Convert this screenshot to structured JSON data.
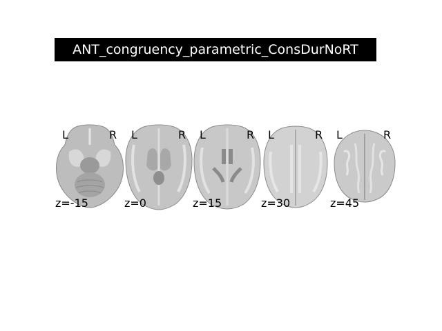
{
  "figure": {
    "title": "ANT_congruency_parametric_ConsDurNoRT",
    "title_bg": "#000000",
    "title_fg": "#ffffff"
  },
  "slices": [
    {
      "z_label": "z=-15",
      "left_label": "L",
      "right_label": "R"
    },
    {
      "z_label": "z=0",
      "left_label": "L",
      "right_label": "R"
    },
    {
      "z_label": "z=15",
      "left_label": "L",
      "right_label": "R"
    },
    {
      "z_label": "z=30",
      "left_label": "L",
      "right_label": "R"
    },
    {
      "z_label": "z=45",
      "left_label": "L",
      "right_label": "R"
    }
  ]
}
